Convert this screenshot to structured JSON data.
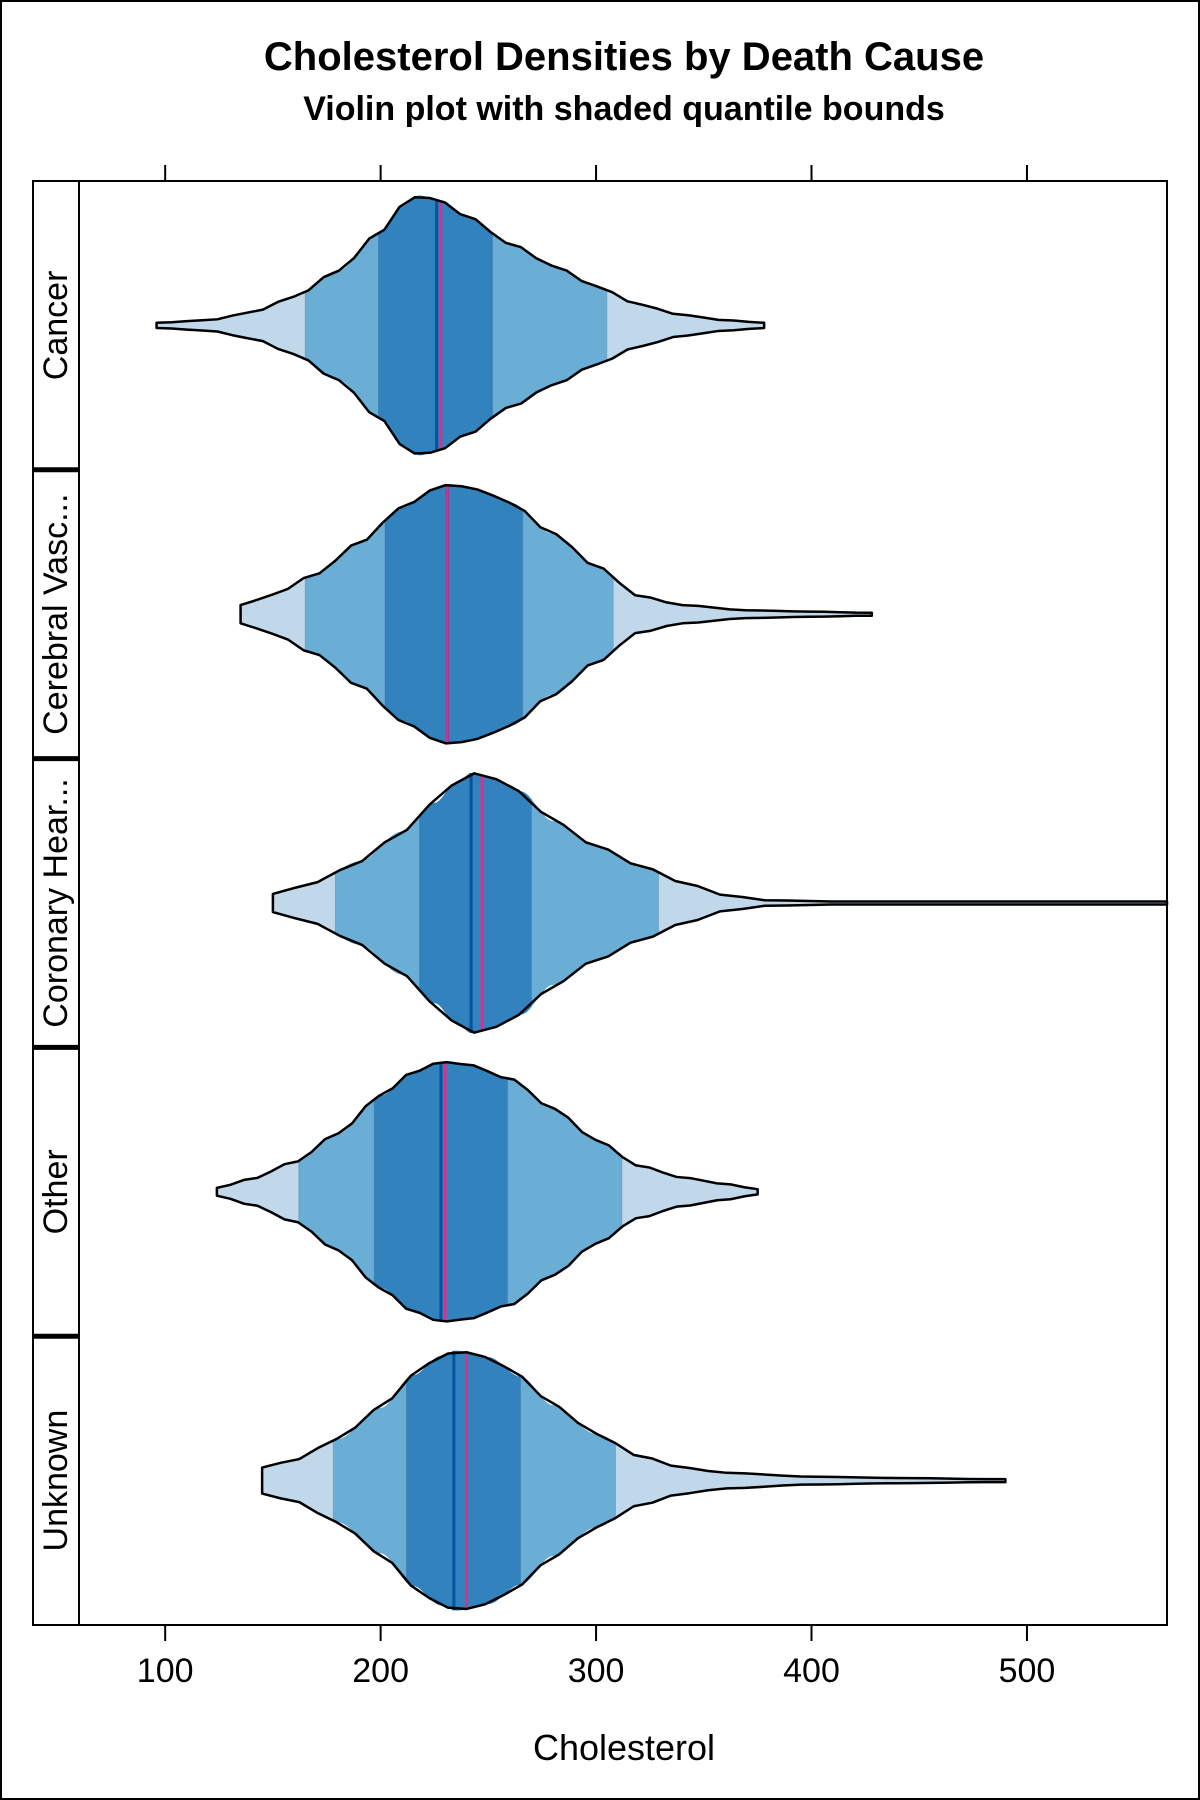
{
  "chart_data": {
    "type": "violin",
    "title": "Cholesterol Densities by Death Cause",
    "subtitle": "Violin plot with shaded quantile bounds",
    "xlabel": "Cholesterol",
    "xlim": [
      60,
      565
    ],
    "xticks": [
      100,
      200,
      300,
      400,
      500
    ],
    "tick_labels": [
      "100",
      "200",
      "300",
      "400",
      "500"
    ],
    "colors": {
      "outer": "#c0d8e9",
      "middle": "#6aadd5",
      "inner": "#3182bd",
      "median": "#08519c",
      "mean": "#e7298a",
      "outline": "#000000"
    },
    "series": [
      {
        "name": "Cancer",
        "min": 96,
        "max": 378,
        "q05": 165,
        "q25": 199,
        "median": 226,
        "q75": 252,
        "q95": 305,
        "mean": 228,
        "profile": [
          [
            96,
            0.02
          ],
          [
            120,
            0.04
          ],
          [
            140,
            0.1
          ],
          [
            160,
            0.22
          ],
          [
            180,
            0.42
          ],
          [
            200,
            0.72
          ],
          [
            210,
            0.92
          ],
          [
            218,
            1.0
          ],
          [
            226,
            0.97
          ],
          [
            240,
            0.84
          ],
          [
            260,
            0.63
          ],
          [
            280,
            0.46
          ],
          [
            300,
            0.3
          ],
          [
            320,
            0.16
          ],
          [
            340,
            0.08
          ],
          [
            360,
            0.04
          ],
          [
            378,
            0.02
          ]
        ]
      },
      {
        "name": "Cerebral Vascular Disease",
        "label": "Cerebral Vasc...",
        "min": 135,
        "max": 428,
        "q05": 165,
        "q25": 202,
        "median": 231,
        "q75": 266,
        "q95": 308,
        "mean": 231,
        "profile": [
          [
            135,
            0.07
          ],
          [
            150,
            0.15
          ],
          [
            170,
            0.31
          ],
          [
            190,
            0.55
          ],
          [
            210,
            0.82
          ],
          [
            225,
            0.96
          ],
          [
            232,
            1.0
          ],
          [
            245,
            0.96
          ],
          [
            260,
            0.86
          ],
          [
            280,
            0.62
          ],
          [
            300,
            0.37
          ],
          [
            320,
            0.14
          ],
          [
            340,
            0.07
          ],
          [
            370,
            0.03
          ],
          [
            400,
            0.02
          ],
          [
            428,
            0.01
          ]
        ]
      },
      {
        "name": "Coronary Heart Disease",
        "label": "Coronary Hear...",
        "min": 150,
        "max": 565,
        "q05": 179,
        "q25": 218,
        "median": 242,
        "q75": 270,
        "q95": 329,
        "mean": 247,
        "profile": [
          [
            150,
            0.07
          ],
          [
            170,
            0.16
          ],
          [
            190,
            0.32
          ],
          [
            210,
            0.55
          ],
          [
            225,
            0.77
          ],
          [
            235,
            0.92
          ],
          [
            242,
            1.0
          ],
          [
            250,
            0.97
          ],
          [
            265,
            0.86
          ],
          [
            280,
            0.63
          ],
          [
            300,
            0.44
          ],
          [
            320,
            0.29
          ],
          [
            340,
            0.16
          ],
          [
            360,
            0.06
          ],
          [
            380,
            0.02
          ],
          [
            420,
            0.01
          ],
          [
            480,
            0.01
          ],
          [
            565,
            0.01
          ]
        ]
      },
      {
        "name": "Other",
        "min": 124,
        "max": 375,
        "q05": 162,
        "q25": 197,
        "median": 228,
        "q75": 259,
        "q95": 312,
        "mean": 230,
        "profile": [
          [
            124,
            0.03
          ],
          [
            140,
            0.1
          ],
          [
            160,
            0.23
          ],
          [
            180,
            0.45
          ],
          [
            200,
            0.74
          ],
          [
            215,
            0.92
          ],
          [
            228,
            1.0
          ],
          [
            240,
            0.98
          ],
          [
            260,
            0.87
          ],
          [
            280,
            0.64
          ],
          [
            300,
            0.4
          ],
          [
            320,
            0.2
          ],
          [
            340,
            0.11
          ],
          [
            360,
            0.06
          ],
          [
            375,
            0.02
          ]
        ]
      },
      {
        "name": "Unknown",
        "min": 145,
        "max": 490,
        "q05": 178,
        "q25": 212,
        "median": 234,
        "q75": 265,
        "q95": 309,
        "mean": 240,
        "profile": [
          [
            145,
            0.1
          ],
          [
            160,
            0.16
          ],
          [
            180,
            0.32
          ],
          [
            200,
            0.56
          ],
          [
            215,
            0.81
          ],
          [
            228,
            0.96
          ],
          [
            235,
            1.0
          ],
          [
            250,
            0.95
          ],
          [
            265,
            0.8
          ],
          [
            280,
            0.58
          ],
          [
            300,
            0.36
          ],
          [
            320,
            0.19
          ],
          [
            340,
            0.1
          ],
          [
            360,
            0.06
          ],
          [
            400,
            0.03
          ],
          [
            440,
            0.02
          ],
          [
            490,
            0.01
          ]
        ]
      }
    ]
  }
}
